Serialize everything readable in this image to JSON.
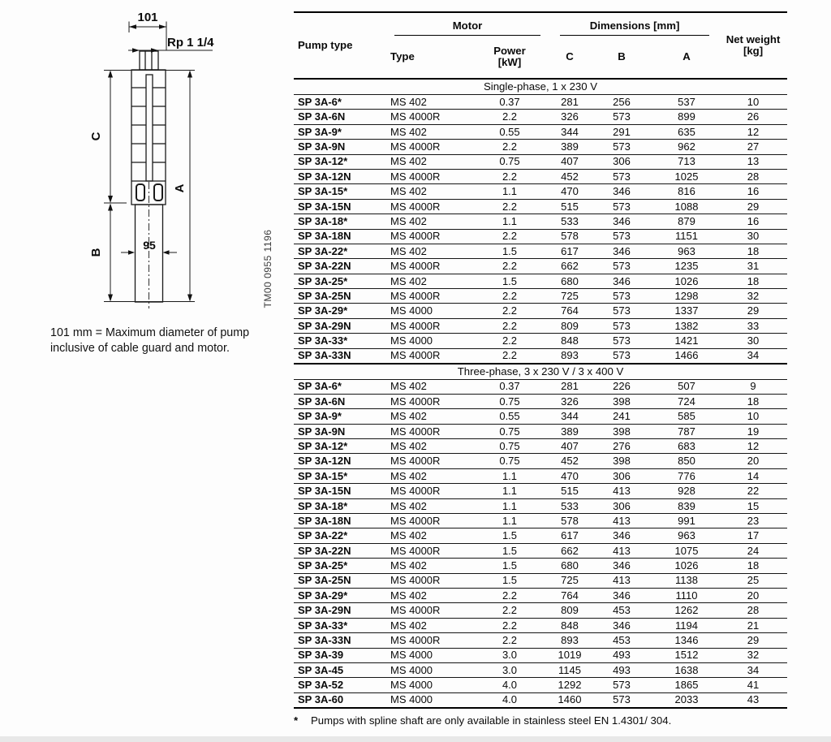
{
  "diagram": {
    "width_dim_label": "101",
    "thread_label": "Rp 1 1/4",
    "dim_c": "C",
    "dim_a": "A",
    "dim_b": "B",
    "motor_width_label": "95",
    "drawing_code": "TM00 0955 1196",
    "caption_line1": "101 mm = Maximum diameter of pump",
    "caption_line2": "inclusive of cable guard and motor."
  },
  "table": {
    "header": {
      "pump_type": "Pump type",
      "motor_group": "Motor",
      "motor_type": "Type",
      "power_line1": "Power",
      "power_line2": "[kW]",
      "dimensions_group": "Dimensions [mm]",
      "dim_c": "C",
      "dim_b": "B",
      "dim_a": "A",
      "net_weight_line1": "Net weight",
      "net_weight_line2": "[kg]"
    },
    "sections": [
      {
        "title": "Single-phase, 1 x 230 V",
        "rows": [
          [
            "SP 3A-6*",
            "MS 402",
            "0.37",
            "281",
            "256",
            "537",
            "10"
          ],
          [
            "SP 3A-6N",
            "MS 4000R",
            "2.2",
            "326",
            "573",
            "899",
            "26"
          ],
          [
            "SP 3A-9*",
            "MS 402",
            "0.55",
            "344",
            "291",
            "635",
            "12"
          ],
          [
            "SP 3A-9N",
            "MS 4000R",
            "2.2",
            "389",
            "573",
            "962",
            "27"
          ],
          [
            "SP 3A-12*",
            "MS 402",
            "0.75",
            "407",
            "306",
            "713",
            "13"
          ],
          [
            "SP 3A-12N",
            "MS 4000R",
            "2.2",
            "452",
            "573",
            "1025",
            "28"
          ],
          [
            "SP 3A-15*",
            "MS 402",
            "1.1",
            "470",
            "346",
            "816",
            "16"
          ],
          [
            "SP 3A-15N",
            "MS 4000R",
            "2.2",
            "515",
            "573",
            "1088",
            "29"
          ],
          [
            "SP 3A-18*",
            "MS 402",
            "1.1",
            "533",
            "346",
            "879",
            "16"
          ],
          [
            "SP 3A-18N",
            "MS 4000R",
            "2.2",
            "578",
            "573",
            "1151",
            "30"
          ],
          [
            "SP 3A-22*",
            "MS 402",
            "1.5",
            "617",
            "346",
            "963",
            "18"
          ],
          [
            "SP 3A-22N",
            "MS 4000R",
            "2.2",
            "662",
            "573",
            "1235",
            "31"
          ],
          [
            "SP 3A-25*",
            "MS 402",
            "1.5",
            "680",
            "346",
            "1026",
            "18"
          ],
          [
            "SP 3A-25N",
            "MS 4000R",
            "2.2",
            "725",
            "573",
            "1298",
            "32"
          ],
          [
            "SP 3A-29*",
            "MS 4000",
            "2.2",
            "764",
            "573",
            "1337",
            "29"
          ],
          [
            "SP 3A-29N",
            "MS 4000R",
            "2.2",
            "809",
            "573",
            "1382",
            "33"
          ],
          [
            "SP 3A-33*",
            "MS 4000",
            "2.2",
            "848",
            "573",
            "1421",
            "30"
          ],
          [
            "SP 3A-33N",
            "MS 4000R",
            "2.2",
            "893",
            "573",
            "1466",
            "34"
          ]
        ]
      },
      {
        "title": "Three-phase, 3 x 230 V / 3 x 400 V",
        "rows": [
          [
            "SP 3A-6*",
            "MS 402",
            "0.37",
            "281",
            "226",
            "507",
            "9"
          ],
          [
            "SP 3A-6N",
            "MS 4000R",
            "0.75",
            "326",
            "398",
            "724",
            "18"
          ],
          [
            "SP 3A-9*",
            "MS 402",
            "0.55",
            "344",
            "241",
            "585",
            "10"
          ],
          [
            "SP 3A-9N",
            "MS 4000R",
            "0.75",
            "389",
            "398",
            "787",
            "19"
          ],
          [
            "SP 3A-12*",
            "MS 402",
            "0.75",
            "407",
            "276",
            "683",
            "12"
          ],
          [
            "SP 3A-12N",
            "MS 4000R",
            "0.75",
            "452",
            "398",
            "850",
            "20"
          ],
          [
            "SP 3A-15*",
            "MS 402",
            "1.1",
            "470",
            "306",
            "776",
            "14"
          ],
          [
            "SP 3A-15N",
            "MS 4000R",
            "1.1",
            "515",
            "413",
            "928",
            "22"
          ],
          [
            "SP 3A-18*",
            "MS 402",
            "1.1",
            "533",
            "306",
            "839",
            "15"
          ],
          [
            "SP 3A-18N",
            "MS 4000R",
            "1.1",
            "578",
            "413",
            "991",
            "23"
          ],
          [
            "SP 3A-22*",
            "MS 402",
            "1.5",
            "617",
            "346",
            "963",
            "17"
          ],
          [
            "SP 3A-22N",
            "MS 4000R",
            "1.5",
            "662",
            "413",
            "1075",
            "24"
          ],
          [
            "SP 3A-25*",
            "MS 402",
            "1.5",
            "680",
            "346",
            "1026",
            "18"
          ],
          [
            "SP 3A-25N",
            "MS 4000R",
            "1.5",
            "725",
            "413",
            "1138",
            "25"
          ],
          [
            "SP 3A-29*",
            "MS 402",
            "2.2",
            "764",
            "346",
            "1110",
            "20"
          ],
          [
            "SP 3A-29N",
            "MS 4000R",
            "2.2",
            "809",
            "453",
            "1262",
            "28"
          ],
          [
            "SP 3A-33*",
            "MS 402",
            "2.2",
            "848",
            "346",
            "1194",
            "21"
          ],
          [
            "SP 3A-33N",
            "MS 4000R",
            "2.2",
            "893",
            "453",
            "1346",
            "29"
          ],
          [
            "SP 3A-39",
            "MS 4000",
            "3.0",
            "1019",
            "493",
            "1512",
            "32"
          ],
          [
            "SP 3A-45",
            "MS 4000",
            "3.0",
            "1145",
            "493",
            "1638",
            "34"
          ],
          [
            "SP 3A-52",
            "MS 4000",
            "4.0",
            "1292",
            "573",
            "1865",
            "41"
          ],
          [
            "SP 3A-60",
            "MS 4000",
            "4.0",
            "1460",
            "573",
            "2033",
            "43"
          ]
        ]
      }
    ],
    "footnote_marker": "*",
    "footnote_text": "Pumps with spline shaft are only available in stainless steel EN 1.4301/ 304."
  }
}
